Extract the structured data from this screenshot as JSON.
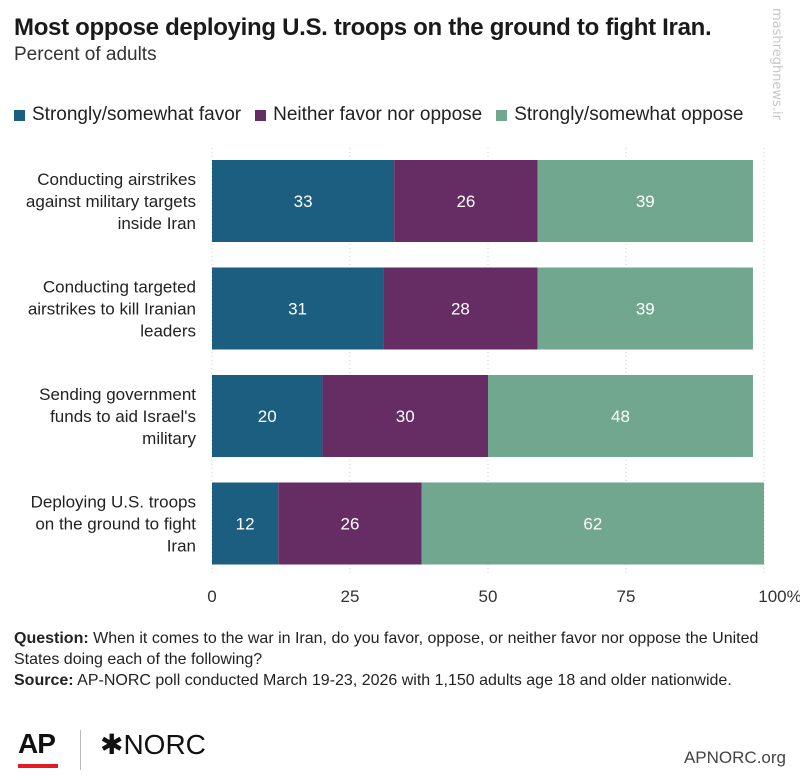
{
  "title": "Most oppose deploying U.S. troops on the ground to fight Iran.",
  "subtitle": "Percent of adults",
  "watermark": "mashreghnews.ir",
  "colors": {
    "favor": "#1b5e7f",
    "neither": "#652d63",
    "oppose": "#70a78e",
    "grid": "#cccccc"
  },
  "chart_data": {
    "type": "bar",
    "orientation": "horizontal",
    "stacked": true,
    "categories": [
      [
        "Conducting airstrikes",
        "against military targets",
        "inside Iran"
      ],
      [
        "Conducting targeted",
        "airstrikes to kill Iranian",
        "leaders"
      ],
      [
        "Sending government",
        "funds to aid Israel's",
        "military"
      ],
      [
        "Deploying U.S. troops",
        "on the ground to fight",
        "Iran"
      ]
    ],
    "series": [
      {
        "name": "Strongly/somewhat favor",
        "color_key": "favor",
        "values": [
          33,
          31,
          20,
          12
        ]
      },
      {
        "name": "Neither favor nor oppose",
        "color_key": "neither",
        "values": [
          26,
          28,
          30,
          26
        ]
      },
      {
        "name": "Strongly/somewhat oppose",
        "color_key": "oppose",
        "values": [
          39,
          39,
          48,
          62
        ]
      }
    ],
    "xlim": [
      0,
      100
    ],
    "xticks": [
      "0",
      "25",
      "50",
      "75",
      "100%"
    ],
    "xtick_values": [
      0,
      25,
      50,
      75,
      100
    ],
    "grid": "vertical dotted",
    "legend": "top",
    "data_labels": true
  },
  "footnote": {
    "question_label": "Question:",
    "question_text": "When it comes to the war in Iran, do you favor, oppose, or neither favor nor oppose the United States doing each of the following?",
    "source_label": "Source:",
    "source_text": "AP-NORC poll conducted March 19-23, 2026 with 1,150 adults age 18 and older nationwide."
  },
  "logos": {
    "ap": "AP",
    "norc": "✱NORC",
    "site": "APNORC.org"
  }
}
